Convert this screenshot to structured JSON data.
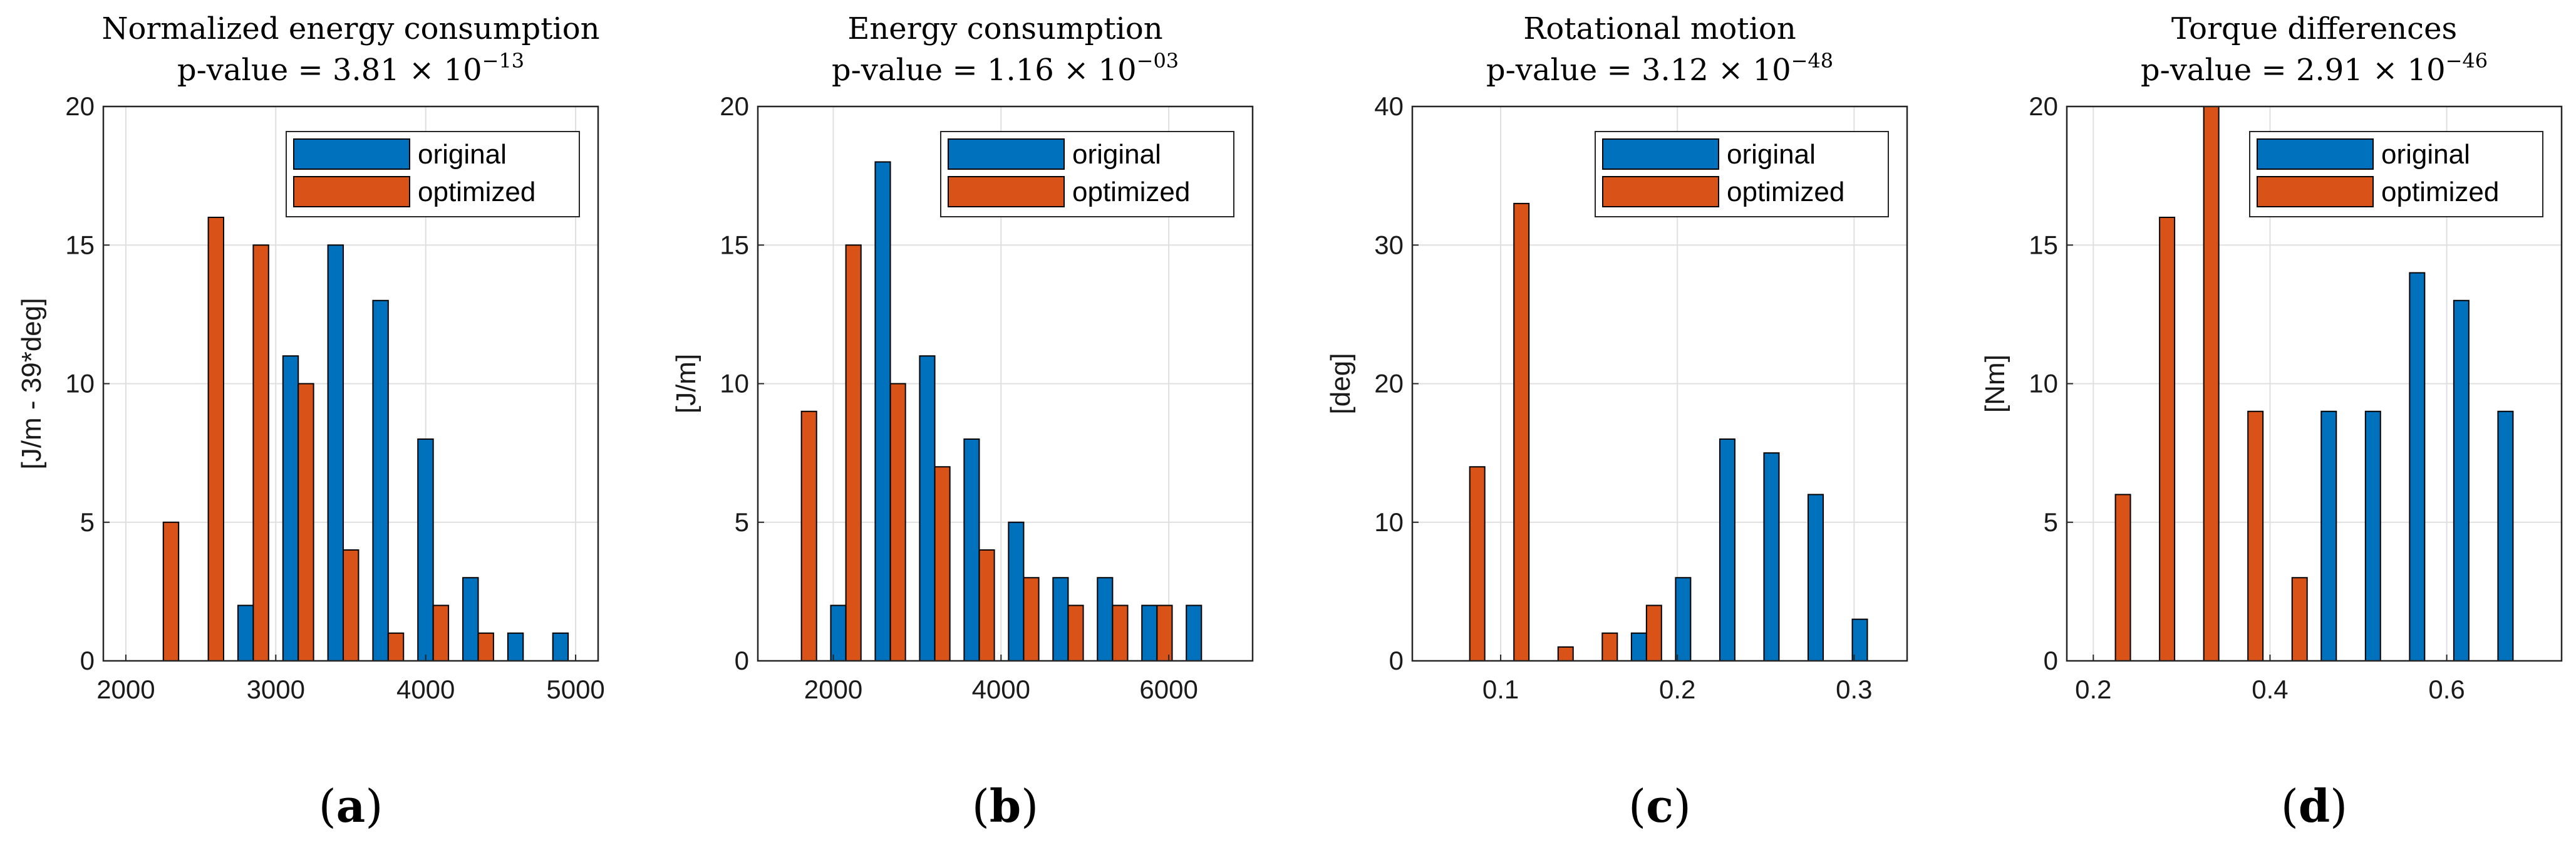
{
  "chart_data": [
    {
      "id": "a",
      "type": "bar",
      "panel_label": "a",
      "title": "Normalized energy consumption",
      "subtitle_prefix": "p-value = ",
      "subtitle_mantissa": "3.81",
      "subtitle_times": "×",
      "subtitle_base": "10",
      "subtitle_exponent": "−13",
      "ylabel": "[J/m - 39*deg]",
      "xlim": [
        1850,
        5150
      ],
      "ylim": [
        0,
        20
      ],
      "xticks": [
        2000,
        3000,
        4000,
        5000
      ],
      "yticks": [
        0,
        5,
        10,
        15,
        20
      ],
      "bin_width": 300,
      "categories": [
        2250,
        2550,
        2850,
        3150,
        3450,
        3750,
        4050,
        4350,
        4650,
        4950
      ],
      "series": [
        {
          "name": "original",
          "color": "#0072BD",
          "values": [
            0,
            0,
            2,
            11,
            15,
            13,
            8,
            3,
            1,
            1
          ]
        },
        {
          "name": "optimized",
          "color": "#D95319",
          "values": [
            5,
            16,
            15,
            10,
            4,
            1,
            2,
            1,
            0,
            0
          ]
        }
      ],
      "legend": {
        "position": "top-right",
        "entries": [
          "original",
          "optimized"
        ]
      },
      "grid": true
    },
    {
      "id": "b",
      "type": "bar",
      "panel_label": "b",
      "title": "Energy consumption",
      "subtitle_prefix": "p-value = ",
      "subtitle_mantissa": "1.16",
      "subtitle_times": "×",
      "subtitle_base": "10",
      "subtitle_exponent": "−03",
      "ylabel": "[J/m]",
      "xlim": [
        1100,
        7000
      ],
      "ylim": [
        0,
        20
      ],
      "xticks": [
        2000,
        4000,
        6000
      ],
      "yticks": [
        0,
        5,
        10,
        15,
        20
      ],
      "bin_width": 530,
      "categories": [
        1620,
        2150,
        2680,
        3210,
        3740,
        4270,
        4800,
        5330,
        5860,
        6390
      ],
      "series": [
        {
          "name": "original",
          "color": "#0072BD",
          "values": [
            0,
            2,
            18,
            11,
            8,
            5,
            3,
            3,
            2,
            2
          ]
        },
        {
          "name": "optimized",
          "color": "#D95319",
          "values": [
            9,
            15,
            10,
            7,
            4,
            3,
            2,
            2,
            2,
            0
          ]
        }
      ],
      "legend": {
        "position": "top-right",
        "entries": [
          "original",
          "optimized"
        ]
      },
      "grid": true
    },
    {
      "id": "c",
      "type": "bar",
      "panel_label": "c",
      "title": "Rotational motion",
      "subtitle_prefix": "p-value = ",
      "subtitle_mantissa": "3.12",
      "subtitle_times": "×",
      "subtitle_base": "10",
      "subtitle_exponent": "−48",
      "ylabel": "[deg]",
      "xlim": [
        0.05,
        0.33
      ],
      "ylim": [
        0,
        40
      ],
      "xticks": [
        0.1,
        0.2,
        0.3
      ],
      "yticks": [
        0,
        10,
        20,
        30,
        40
      ],
      "bin_width": 0.025,
      "categories": [
        0.0825,
        0.1075,
        0.1325,
        0.1575,
        0.1825,
        0.2075,
        0.2325,
        0.2575,
        0.2825,
        0.3075
      ],
      "series": [
        {
          "name": "original",
          "color": "#0072BD",
          "values": [
            0,
            0,
            0,
            0,
            2,
            6,
            16,
            15,
            12,
            3
          ]
        },
        {
          "name": "optimized",
          "color": "#D95319",
          "values": [
            14,
            33,
            1,
            2,
            4,
            0,
            0,
            0,
            0,
            0
          ]
        }
      ],
      "legend": {
        "position": "top-right",
        "entries": [
          "original",
          "optimized"
        ]
      },
      "grid": true
    },
    {
      "id": "d",
      "type": "bar",
      "panel_label": "d",
      "title": "Torque differences",
      "subtitle_prefix": "p-value = ",
      "subtitle_mantissa": "2.91",
      "subtitle_times": "×",
      "subtitle_base": "10",
      "subtitle_exponent": "−46",
      "ylabel": "[Nm]",
      "xlim": [
        0.17,
        0.73
      ],
      "ylim": [
        0,
        20
      ],
      "xticks": [
        0.2,
        0.4,
        0.6
      ],
      "yticks": [
        0,
        5,
        10,
        15,
        20
      ],
      "bin_width": 0.05,
      "categories": [
        0.225,
        0.275,
        0.325,
        0.375,
        0.425,
        0.475,
        0.525,
        0.575,
        0.625,
        0.675
      ],
      "series": [
        {
          "name": "original",
          "color": "#0072BD",
          "values": [
            0,
            0,
            0,
            0,
            0,
            9,
            9,
            14,
            13,
            9
          ]
        },
        {
          "name": "optimized",
          "color": "#D95319",
          "values": [
            6,
            16,
            20,
            9,
            3,
            0,
            0,
            0,
            0,
            0
          ]
        }
      ],
      "legend": {
        "position": "top-right",
        "entries": [
          "original",
          "optimized"
        ]
      },
      "grid": true
    }
  ]
}
